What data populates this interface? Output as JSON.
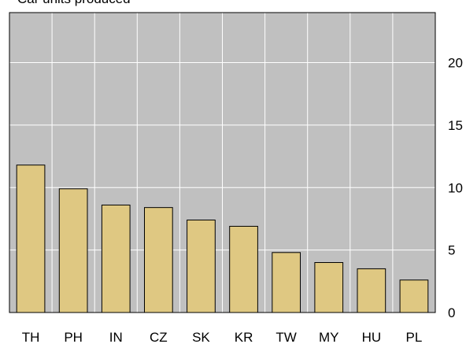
{
  "chart_data": {
    "type": "bar",
    "title": "Car units produced",
    "categories": [
      "TH",
      "PH",
      "IN",
      "CZ",
      "SK",
      "KR",
      "TW",
      "MY",
      "HU",
      "PL"
    ],
    "values": [
      11.8,
      9.9,
      8.6,
      8.4,
      7.4,
      6.9,
      4.8,
      4.0,
      3.5,
      2.6
    ],
    "color": "#dfc882",
    "ylim": [
      0,
      24
    ],
    "yticks": [
      0,
      5,
      10,
      15,
      20
    ],
    "grid": true
  }
}
